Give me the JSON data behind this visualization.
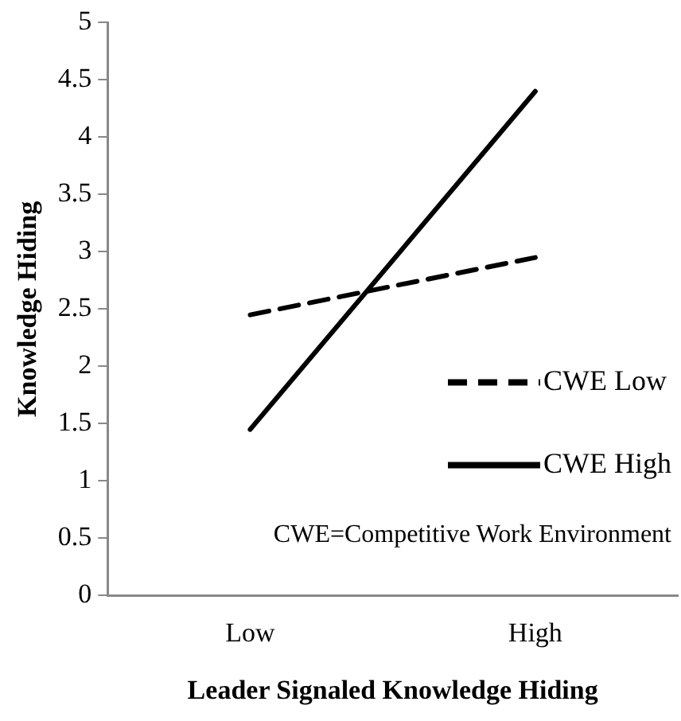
{
  "chart_data": {
    "type": "line",
    "xlabel": "Leader Signaled Knowledge Hiding",
    "ylabel": "Knowledge Hiding",
    "categories": [
      "Low",
      "High"
    ],
    "series": [
      {
        "name": "CWE Low",
        "color": "#000000",
        "values": [
          2.45,
          2.95
        ],
        "line_style": "dashed"
      },
      {
        "name": "CWE High",
        "color": "#000000",
        "values": [
          1.45,
          4.4
        ],
        "line_style": "solid"
      }
    ],
    "ylim": [
      0,
      5
    ],
    "yticks": [
      0,
      0.5,
      1,
      1.5,
      2,
      2.5,
      3,
      3.5,
      4,
      4.5,
      5
    ],
    "grid": false,
    "legend": "right",
    "marker": "none",
    "annotations": [
      "CWE=Competitive Work Environment"
    ]
  }
}
